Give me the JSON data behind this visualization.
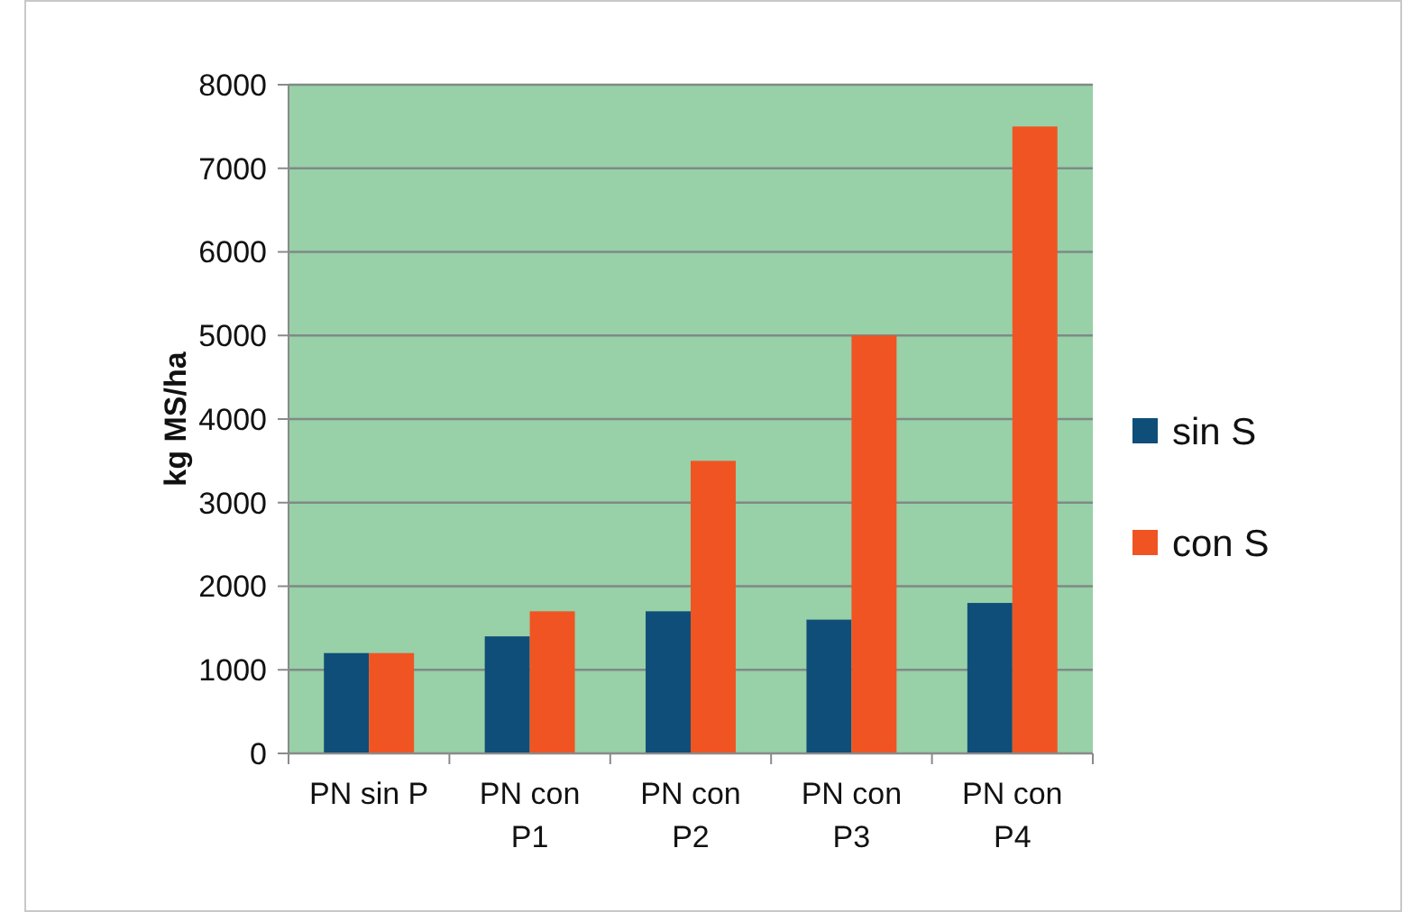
{
  "chart_data": {
    "type": "bar",
    "ylabel": "kg MS/ha",
    "categories": [
      "PN sin P",
      "PN con P1",
      "PN con P2",
      "PN con P3",
      "PN con P4"
    ],
    "series": [
      {
        "name": "sin S",
        "color": "#0f4e78",
        "values": [
          1200,
          1400,
          1700,
          1600,
          1800
        ]
      },
      {
        "name": "con S",
        "color": "#f05423",
        "values": [
          1200,
          1700,
          3500,
          5000,
          7500
        ]
      }
    ],
    "ylim": [
      0,
      8000
    ],
    "yticks": [
      0,
      1000,
      2000,
      3000,
      4000,
      5000,
      6000,
      7000,
      8000
    ],
    "grid": "y",
    "legend": "right"
  }
}
